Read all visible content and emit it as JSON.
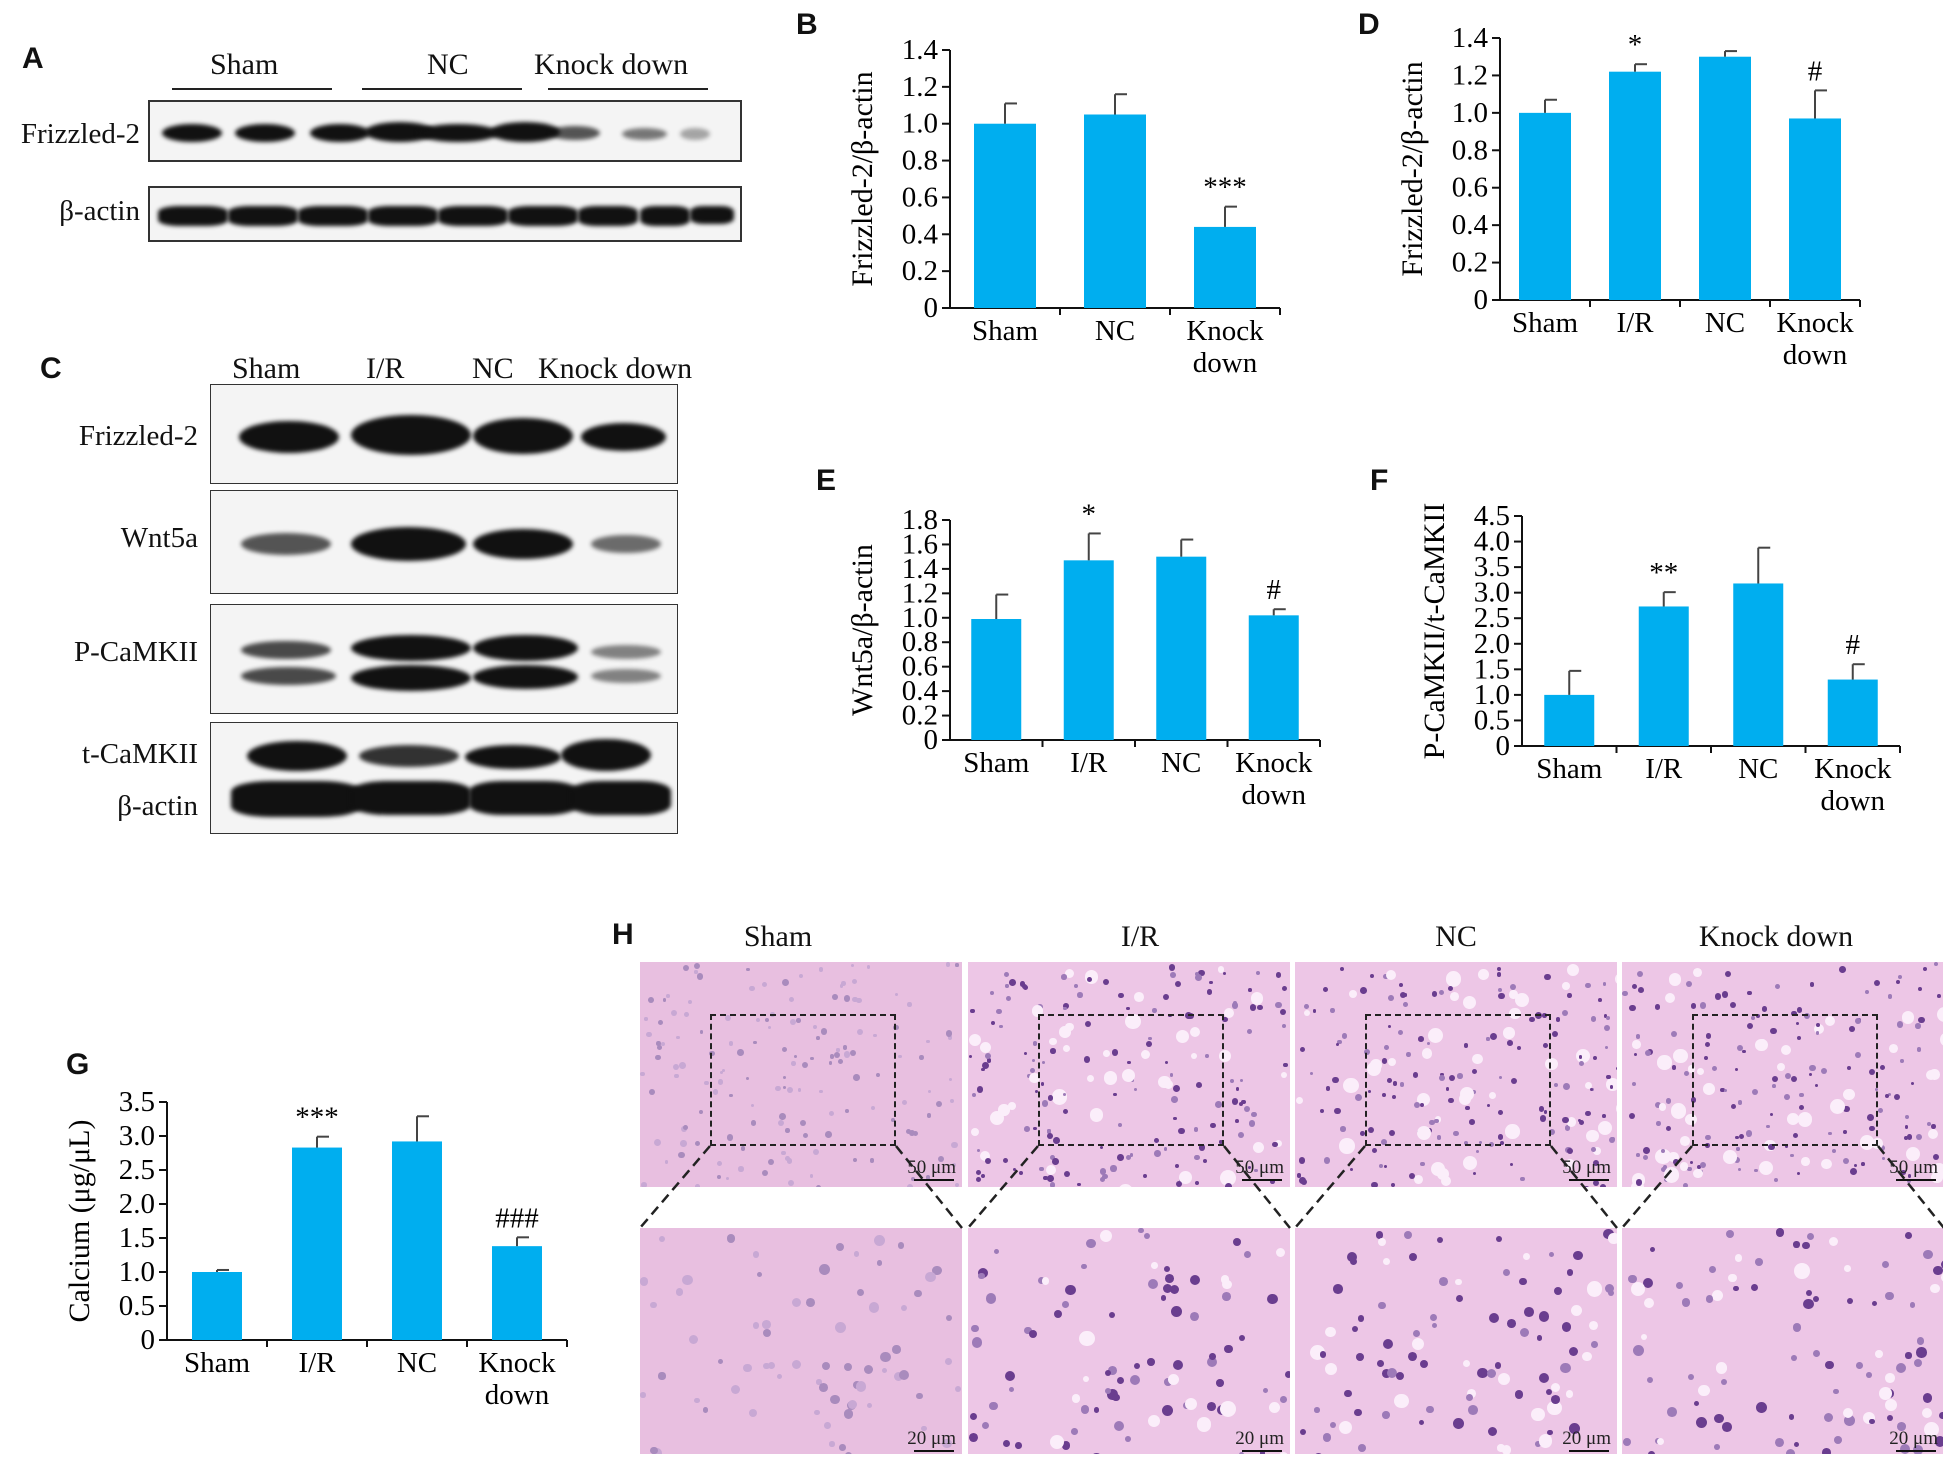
{
  "panels": {
    "A": {
      "label": "A",
      "groups": [
        "Sham",
        "NC",
        "Knock down"
      ],
      "rows": [
        "Frizzled-2",
        "β-actin"
      ]
    },
    "C": {
      "label": "C",
      "groups": [
        "Sham",
        "I/R",
        "NC",
        "Knock down"
      ],
      "rows": [
        "Frizzled-2",
        "Wnt5a",
        "P-CaMKII",
        "t-CaMKII",
        "β-actin"
      ]
    },
    "H": {
      "label": "H",
      "groups": [
        "Sham",
        "I/R",
        "NC",
        "Knock down"
      ],
      "scale_top": "50 μm",
      "scale_bottom": "20 μm"
    }
  },
  "chart_data": [
    {
      "panel": "B",
      "type": "bar",
      "categories": [
        "Sham",
        "NC",
        "Knock\ndown"
      ],
      "values": [
        1.0,
        1.05,
        0.44
      ],
      "errors": [
        0.11,
        0.11,
        0.11
      ],
      "annotations": [
        "",
        "",
        "***"
      ],
      "ylabel": "Frizzled-2/β-actin",
      "ylim": [
        0,
        1.4
      ],
      "yticks": [
        "0",
        "0.2",
        "0.4",
        "0.6",
        "0.8",
        "1.0",
        "1.2",
        "1.4"
      ],
      "color": "#00aeef"
    },
    {
      "panel": "D",
      "type": "bar",
      "categories": [
        "Sham",
        "I/R",
        "NC",
        "Knock\ndown"
      ],
      "values": [
        1.0,
        1.22,
        1.3,
        0.97
      ],
      "errors": [
        0.07,
        0.04,
        0.03,
        0.15
      ],
      "annotations": [
        "",
        "*",
        "",
        "#"
      ],
      "ylabel": "Frizzled-2/β-actin",
      "ylim": [
        0,
        1.4
      ],
      "yticks": [
        "0",
        "0.2",
        "0.4",
        "0.6",
        "0.8",
        "1.0",
        "1.2",
        "1.4"
      ],
      "color": "#00aeef"
    },
    {
      "panel": "E",
      "type": "bar",
      "categories": [
        "Sham",
        "I/R",
        "NC",
        "Knock\ndown"
      ],
      "values": [
        0.99,
        1.47,
        1.5,
        1.02
      ],
      "errors": [
        0.2,
        0.22,
        0.14,
        0.05
      ],
      "annotations": [
        "",
        "*",
        "",
        "#"
      ],
      "ylabel": "Wnt5a/β-actin",
      "ylim": [
        0,
        1.8
      ],
      "yticks": [
        "0",
        "0.2",
        "0.4",
        "0.6",
        "0.8",
        "1.0",
        "1.2",
        "1.4",
        "1.6",
        "1.8"
      ],
      "color": "#00aeef"
    },
    {
      "panel": "F",
      "type": "bar",
      "categories": [
        "Sham",
        "I/R",
        "NC",
        "Knock\ndown"
      ],
      "values": [
        1.0,
        2.73,
        3.18,
        1.3
      ],
      "errors": [
        0.47,
        0.28,
        0.7,
        0.3
      ],
      "annotations": [
        "",
        "**",
        "",
        "#"
      ],
      "ylabel": "P-CaMKII/t-CaMKII",
      "ylim": [
        0,
        4.5
      ],
      "yticks": [
        "0",
        "0.5",
        "1.0",
        "1.5",
        "2.0",
        "2.5",
        "3.0",
        "3.5",
        "4.0",
        "4.5"
      ],
      "color": "#00aeef"
    },
    {
      "panel": "G",
      "type": "bar",
      "categories": [
        "Sham",
        "I/R",
        "NC",
        "Knock\ndown"
      ],
      "values": [
        1.0,
        2.83,
        2.92,
        1.38
      ],
      "errors": [
        0.03,
        0.16,
        0.37,
        0.13
      ],
      "annotations": [
        "",
        "***",
        "",
        "###"
      ],
      "ylabel": "Calcium (μg/μL)",
      "ylim": [
        0,
        3.5
      ],
      "yticks": [
        "0",
        "0.5",
        "1.0",
        "1.5",
        "2.0",
        "2.5",
        "3.0",
        "3.5"
      ],
      "color": "#00aeef"
    }
  ]
}
